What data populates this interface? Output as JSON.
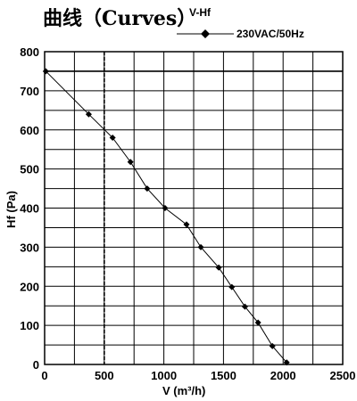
{
  "chart_data": {
    "type": "line",
    "title": "曲线（Curves）",
    "subtitle": "V-Hf",
    "xlabel": "V (m³/h)",
    "ylabel": "Hf (Pa)",
    "xlim": [
      0,
      2500
    ],
    "ylim": [
      0,
      800
    ],
    "xticks": [
      0,
      500,
      1000,
      1500,
      2000,
      2500
    ],
    "yticks": [
      0,
      100,
      200,
      300,
      400,
      500,
      600,
      700,
      800
    ],
    "grid": true,
    "legend_position": "top",
    "series": [
      {
        "name": "230VAC/50Hz",
        "color": "#000000",
        "marker": "diamond",
        "x": [
          10,
          370,
          570,
          720,
          860,
          1010,
          1190,
          1310,
          1460,
          1570,
          1680,
          1790,
          1910,
          2030
        ],
        "y": [
          750,
          640,
          580,
          518,
          450,
          400,
          358,
          300,
          248,
          198,
          148,
          107,
          47,
          5
        ]
      }
    ],
    "reference_lines": [
      {
        "axis": "y",
        "value": 750,
        "style": "solid"
      },
      {
        "axis": "x",
        "value": 500,
        "style": "dashed"
      }
    ]
  }
}
